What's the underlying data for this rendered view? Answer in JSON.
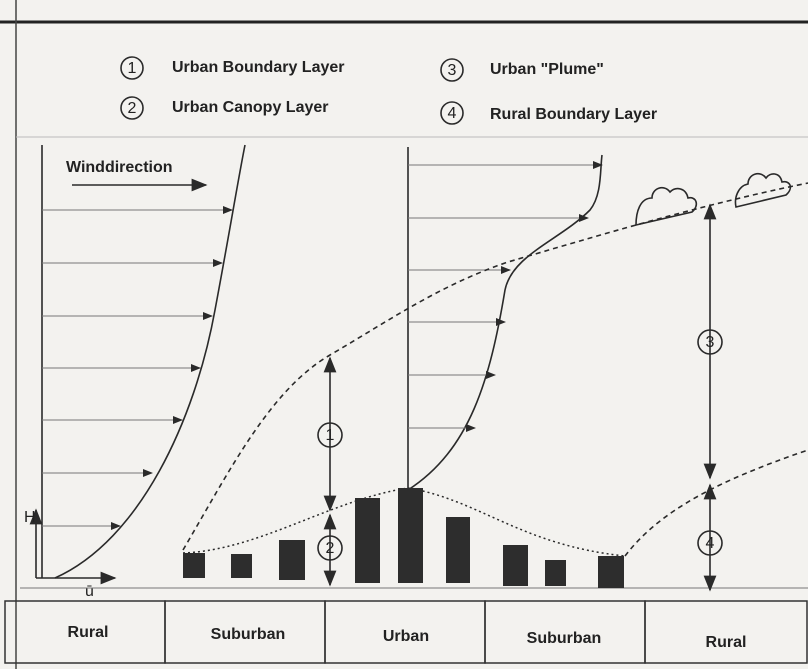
{
  "legend": [
    {
      "number": "1",
      "label": "Urban Boundary Layer"
    },
    {
      "number": "2",
      "label": "Urban Canopy Layer"
    },
    {
      "number": "3",
      "label": "Urban \"Plume\""
    },
    {
      "number": "4",
      "label": "Rural Boundary Layer"
    }
  ],
  "wind_label": "Winddirection",
  "axis": {
    "y": "H",
    "x": "ū"
  },
  "markers": [
    "1",
    "2",
    "3",
    "4"
  ],
  "zones": [
    "Rural",
    "Suburban",
    "Urban",
    "Suburban",
    "Rural"
  ]
}
